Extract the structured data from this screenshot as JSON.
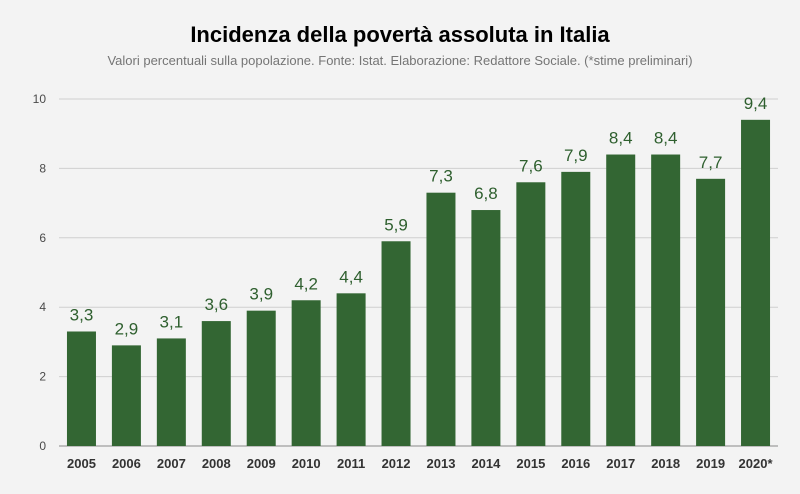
{
  "colors": {
    "bar": "#336633",
    "data_label": "#2e5f2e",
    "grid": "#cfcfcf",
    "axis": "#888888",
    "background": "#f3f3f3"
  },
  "chart_data": {
    "type": "bar",
    "title": "Incidenza della povertà assoluta in Italia",
    "subtitle": "Valori percentuali sulla popolazione. Fonte: Istat.  Elaborazione: Redattore Sociale. (*stime preliminari)",
    "xlabel": "",
    "ylabel": "",
    "categories": [
      "2005",
      "2006",
      "2007",
      "2008",
      "2009",
      "2010",
      "2011",
      "2012",
      "2013",
      "2014",
      "2015",
      "2016",
      "2017",
      "2018",
      "2019",
      "2020*"
    ],
    "values": [
      3.3,
      2.9,
      3.1,
      3.6,
      3.9,
      4.2,
      4.4,
      5.9,
      7.3,
      6.8,
      7.6,
      7.9,
      8.4,
      8.4,
      7.7,
      9.4
    ],
    "value_labels": [
      "3,3",
      "2,9",
      "3,1",
      "3,6",
      "3,9",
      "4,2",
      "4,4",
      "5,9",
      "7,3",
      "6,8",
      "7,6",
      "7,9",
      "8,4",
      "8,4",
      "7,7",
      "9,4"
    ],
    "ylim": [
      0,
      10
    ],
    "yticks": [
      0,
      2,
      4,
      6,
      8,
      10
    ],
    "grid": true,
    "legend": "none"
  }
}
